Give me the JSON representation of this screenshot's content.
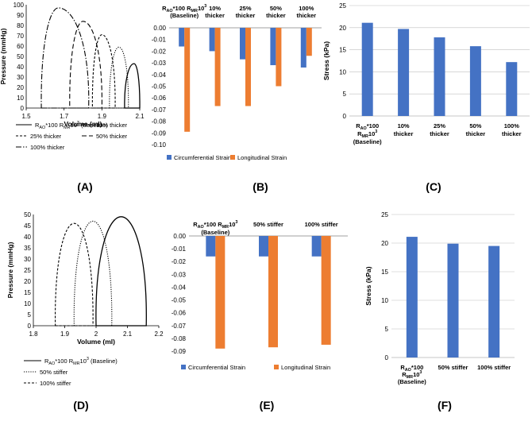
{
  "colors": {
    "blue": "#4472C4",
    "orange": "#ED7D31",
    "axis": "#000000",
    "grid": "#BFBFBF",
    "zero": "#808080"
  },
  "chart_data": [
    {
      "panel": "(A)",
      "type": "line",
      "xlabel": "Volume (ml)",
      "ylabel": "Pressure (mmHg)",
      "xlim": [
        1.5,
        2.1
      ],
      "ylim": [
        0,
        100
      ],
      "xticks": [
        "1.5",
        "1.7",
        "1.9",
        "2.1"
      ],
      "yticks": [
        "0",
        "10",
        "20",
        "30",
        "40",
        "50",
        "60",
        "70",
        "80",
        "90",
        "100"
      ],
      "series": [
        {
          "name": "RAO*100 RMR10³ (Baseline)",
          "name_parts": [
            "R",
            "AO",
            "*100 R",
            "MR",
            "10",
            "3",
            " (Baseline)"
          ],
          "dash": "solid",
          "vmin": 2.02,
          "vmax": 2.1,
          "peak_v": 2.07,
          "peak_p": 43
        },
        {
          "name": "10% thicker",
          "dash": "dotted",
          "vmin": 1.94,
          "vmax": 2.04,
          "peak_v": 1.99,
          "peak_p": 59
        },
        {
          "name": "25% thicker",
          "dash": "short",
          "vmin": 1.85,
          "vmax": 1.97,
          "peak_v": 1.9,
          "peak_p": 71
        },
        {
          "name": "50% thicker",
          "dash": "long",
          "vmin": 1.73,
          "vmax": 1.9,
          "peak_v": 1.8,
          "peak_p": 84
        },
        {
          "name": "100% thicker",
          "dash": "dashdot",
          "vmin": 1.58,
          "vmax": 1.83,
          "peak_v": 1.67,
          "peak_p": 97
        }
      ],
      "legend": "bottom"
    },
    {
      "panel": "(B)",
      "type": "bar",
      "categories": [
        "RAO*100 RMR10³ (Baseline)",
        "10% thicker",
        "25% thicker",
        "50% thicker",
        "100% thicker"
      ],
      "category_parts": [
        [
          [
            "R",
            "AO",
            "*100 R",
            "MR",
            "10",
            "3"
          ],
          [
            "(Baseline)"
          ]
        ],
        [
          [
            "10%"
          ],
          [
            "thicker"
          ]
        ],
        [
          [
            "25%"
          ],
          [
            "thicker"
          ]
        ],
        [
          [
            "50%"
          ],
          [
            "thicker"
          ]
        ],
        [
          [
            "100%"
          ],
          [
            "thicker"
          ]
        ]
      ],
      "series": [
        {
          "name": "Circumferential Strain",
          "color": "#4472C4",
          "values": [
            -0.016,
            -0.02,
            -0.027,
            -0.032,
            -0.034
          ]
        },
        {
          "name": "Longitudinal Strain",
          "color": "#ED7D31",
          "values": [
            -0.089,
            -0.067,
            -0.067,
            -0.05,
            -0.024
          ]
        }
      ],
      "ylim": [
        -0.1,
        0
      ],
      "yticks": [
        "0.00",
        "-0.01",
        "-0.02",
        "-0.03",
        "-0.04",
        "-0.05",
        "-0.06",
        "-0.07",
        "-0.08",
        "-0.09",
        "-0.10"
      ],
      "legend": "bottom"
    },
    {
      "panel": "(C)",
      "type": "bar",
      "ylabel": "Stress (kPa)",
      "categories": [
        "RAO*100 RMR10³ (Baseline)",
        "10% thicker",
        "25% thicker",
        "50% thicker",
        "100% thicker"
      ],
      "category_parts": [
        [
          [
            "R",
            "AO",
            "*100"
          ],
          [
            "R",
            "MR",
            "10",
            "3"
          ],
          [
            "(Baseline)"
          ]
        ],
        [
          [
            "10%"
          ],
          [
            "thicker"
          ]
        ],
        [
          [
            "25%"
          ],
          [
            "thicker"
          ]
        ],
        [
          [
            "50%"
          ],
          [
            "thicker"
          ]
        ],
        [
          [
            "100%"
          ],
          [
            "thicker"
          ]
        ]
      ],
      "series": [
        {
          "color": "#4472C4",
          "values": [
            21.1,
            19.7,
            17.8,
            15.8,
            12.2
          ]
        }
      ],
      "ylim": [
        0,
        25
      ],
      "yticks": [
        "0",
        "5",
        "10",
        "15",
        "20",
        "25"
      ]
    },
    {
      "panel": "(D)",
      "type": "line",
      "xlabel": "Volume (ml)",
      "ylabel": "Pressure (mmHg)",
      "xlim": [
        1.8,
        2.2
      ],
      "ylim": [
        0,
        50
      ],
      "xticks": [
        "1.8",
        "1.9",
        "2",
        "2.1",
        "2.2"
      ],
      "yticks": [
        "0",
        "5",
        "10",
        "15",
        "20",
        "25",
        "30",
        "35",
        "40",
        "45",
        "50"
      ],
      "series": [
        {
          "name": "RAO*100 RMR10³ (Baseline)",
          "name_parts": [
            "R",
            "AO",
            "*100 R",
            "MR",
            "10",
            "3",
            " (Baseline)"
          ],
          "dash": "solid",
          "vmin": 2.0,
          "vmax": 2.16,
          "peak_v": 2.08,
          "peak_p": 49
        },
        {
          "name": "50% stiffer",
          "dash": "dotted",
          "vmin": 1.93,
          "vmax": 2.05,
          "peak_v": 1.99,
          "peak_p": 47
        },
        {
          "name": "100% stiffer",
          "dash": "short",
          "vmin": 1.87,
          "vmax": 1.99,
          "peak_v": 1.93,
          "peak_p": 46
        }
      ],
      "legend": "bottom"
    },
    {
      "panel": "(E)",
      "type": "bar",
      "categories": [
        "RAO*100 RMR10³ (Baseline)",
        "50% stiffer",
        "100% stiffer"
      ],
      "category_parts": [
        [
          [
            "R",
            "AO",
            "*100 R",
            "MR",
            "10",
            "3"
          ],
          [
            "(Baseline)"
          ]
        ],
        [
          [
            "50% stiffer"
          ]
        ],
        [
          [
            "100% stiffer"
          ]
        ]
      ],
      "series": [
        {
          "name": "Circumferential Strain",
          "color": "#4472C4",
          "values": [
            -0.016,
            -0.016,
            -0.016
          ]
        },
        {
          "name": "Longitudinal Strain",
          "color": "#ED7D31",
          "values": [
            -0.088,
            -0.087,
            -0.085
          ]
        }
      ],
      "ylim": [
        -0.09,
        0
      ],
      "yticks": [
        "0.00",
        "-0.01",
        "-0.02",
        "-0.03",
        "-0.04",
        "-0.05",
        "-0.06",
        "-0.07",
        "-0.08",
        "-0.09"
      ],
      "legend": "bottom"
    },
    {
      "panel": "(F)",
      "type": "bar",
      "ylabel": "Stress (kPa)",
      "categories": [
        "RAO*100 RMR10³ (Baseline)",
        "50% stiffer",
        "100% stiffer"
      ],
      "category_parts": [
        [
          [
            "R",
            "AO",
            "*100"
          ],
          [
            "R",
            "MR",
            "10",
            "3"
          ],
          [
            "(Baseline)"
          ]
        ],
        [
          [
            "50% stiffer"
          ]
        ],
        [
          [
            "100% stiffer"
          ]
        ]
      ],
      "series": [
        {
          "color": "#4472C4",
          "values": [
            21.1,
            19.9,
            19.5
          ]
        }
      ],
      "ylim": [
        0,
        25
      ],
      "yticks": [
        "0",
        "5",
        "10",
        "15",
        "20",
        "25"
      ]
    }
  ]
}
